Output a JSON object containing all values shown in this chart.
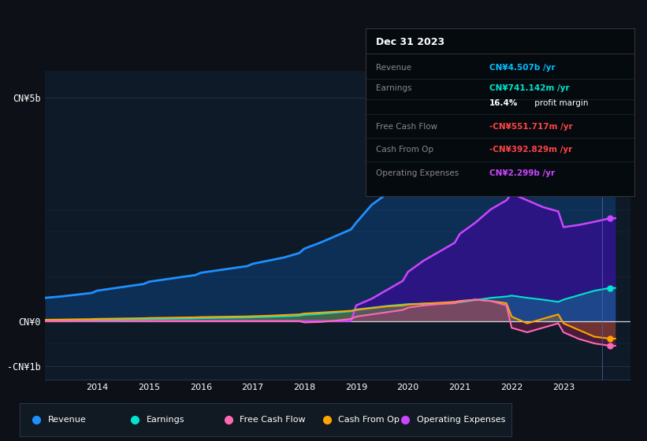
{
  "bg_color": "#0d1117",
  "plot_bg_color": "#0e1a27",
  "grid_color": "#1e2d3d",
  "ylim": [
    -1300000000.0,
    5600000000.0
  ],
  "xlim": [
    2013.0,
    2024.3
  ],
  "yticks": [
    -1000000000.0,
    0,
    5000000000.0
  ],
  "ytick_labels": [
    "-CN¥1b",
    "CN¥0",
    "CN¥5b"
  ],
  "xticks": [
    2014,
    2015,
    2016,
    2017,
    2018,
    2019,
    2020,
    2021,
    2022,
    2023
  ],
  "legend": [
    {
      "label": "Revenue",
      "color": "#1e90ff"
    },
    {
      "label": "Earnings",
      "color": "#00e5cc"
    },
    {
      "label": "Free Cash Flow",
      "color": "#ff69b4"
    },
    {
      "label": "Cash From Op",
      "color": "#ffa500"
    },
    {
      "label": "Operating Expenses",
      "color": "#cc44ff"
    }
  ],
  "info_title": "Dec 31 2023",
  "info_rows": [
    {
      "label": "Revenue",
      "value": "CN¥4.507b /yr",
      "value_color": "#00bfff"
    },
    {
      "label": "Earnings",
      "value": "CN¥741.142m /yr",
      "value_color": "#00e5cc"
    },
    {
      "label": "",
      "value": "16.4% profit margin",
      "value_color": "#ffffff",
      "bold_part": "16.4%"
    },
    {
      "label": "Free Cash Flow",
      "value": "-CN¥551.717m /yr",
      "value_color": "#ff4444"
    },
    {
      "label": "Cash From Op",
      "value": "-CN¥392.829m /yr",
      "value_color": "#ff4444"
    },
    {
      "label": "Operating Expenses",
      "value": "CN¥2.299b /yr",
      "value_color": "#cc44ff"
    }
  ],
  "series": {
    "years": [
      2013.0,
      2013.3,
      2013.6,
      2013.9,
      2014.0,
      2014.3,
      2014.6,
      2014.9,
      2015.0,
      2015.3,
      2015.6,
      2015.9,
      2016.0,
      2016.3,
      2016.6,
      2016.9,
      2017.0,
      2017.3,
      2017.6,
      2017.9,
      2018.0,
      2018.3,
      2018.6,
      2018.9,
      2019.0,
      2019.3,
      2019.6,
      2019.9,
      2020.0,
      2020.3,
      2020.6,
      2020.9,
      2021.0,
      2021.3,
      2021.6,
      2021.9,
      2022.0,
      2022.3,
      2022.6,
      2022.9,
      2023.0,
      2023.3,
      2023.6,
      2023.9,
      2024.0
    ],
    "revenue": [
      520000000.0,
      550000000.0,
      590000000.0,
      630000000.0,
      680000000.0,
      730000000.0,
      780000000.0,
      830000000.0,
      880000000.0,
      930000000.0,
      980000000.0,
      1030000000.0,
      1080000000.0,
      1130000000.0,
      1180000000.0,
      1230000000.0,
      1280000000.0,
      1350000000.0,
      1420000000.0,
      1520000000.0,
      1620000000.0,
      1750000000.0,
      1900000000.0,
      2050000000.0,
      2200000000.0,
      2600000000.0,
      2850000000.0,
      2900000000.0,
      2820000000.0,
      2880000000.0,
      2950000000.0,
      3050000000.0,
      3250000000.0,
      3600000000.0,
      3850000000.0,
      3900000000.0,
      4000000000.0,
      3900000000.0,
      3950000000.0,
      4050000000.0,
      4250000000.0,
      4450000000.0,
      4520000000.0,
      4507000000.0,
      4507000000.0
    ],
    "earnings": [
      15000000.0,
      18000000.0,
      20000000.0,
      22000000.0,
      25000000.0,
      30000000.0,
      35000000.0,
      40000000.0,
      45000000.0,
      50000000.0,
      55000000.0,
      60000000.0,
      65000000.0,
      70000000.0,
      75000000.0,
      80000000.0,
      85000000.0,
      95000000.0,
      105000000.0,
      120000000.0,
      140000000.0,
      160000000.0,
      190000000.0,
      220000000.0,
      260000000.0,
      300000000.0,
      340000000.0,
      370000000.0,
      380000000.0,
      390000000.0,
      400000000.0,
      410000000.0,
      420000000.0,
      470000000.0,
      520000000.0,
      550000000.0,
      570000000.0,
      520000000.0,
      480000000.0,
      430000000.0,
      480000000.0,
      580000000.0,
      680000000.0,
      741000000.0,
      741000000.0
    ],
    "free_cash_flow": [
      0,
      0,
      0,
      0,
      0,
      0,
      0,
      0,
      0,
      0,
      0,
      0,
      0,
      0,
      0,
      0,
      0,
      0,
      0,
      0,
      -30000000.0,
      -20000000.0,
      10000000.0,
      50000000.0,
      100000000.0,
      150000000.0,
      200000000.0,
      250000000.0,
      300000000.0,
      350000000.0,
      380000000.0,
      400000000.0,
      430000000.0,
      480000000.0,
      450000000.0,
      350000000.0,
      -150000000.0,
      -250000000.0,
      -150000000.0,
      -50000000.0,
      -250000000.0,
      -400000000.0,
      -500000000.0,
      -552000000.0,
      -552000000.0
    ],
    "cash_from_op": [
      30000000.0,
      35000000.0,
      40000000.0,
      45000000.0,
      50000000.0,
      55000000.0,
      60000000.0,
      65000000.0,
      70000000.0,
      75000000.0,
      80000000.0,
      85000000.0,
      90000000.0,
      95000000.0,
      100000000.0,
      105000000.0,
      110000000.0,
      120000000.0,
      135000000.0,
      150000000.0,
      170000000.0,
      190000000.0,
      210000000.0,
      230000000.0,
      250000000.0,
      290000000.0,
      330000000.0,
      350000000.0,
      370000000.0,
      390000000.0,
      410000000.0,
      430000000.0,
      450000000.0,
      480000000.0,
      450000000.0,
      400000000.0,
      100000000.0,
      -50000000.0,
      50000000.0,
      150000000.0,
      -50000000.0,
      -200000000.0,
      -350000000.0,
      -393000000.0,
      -393000000.0
    ],
    "operating_expenses": [
      0,
      0,
      0,
      0,
      0,
      0,
      0,
      0,
      0,
      0,
      0,
      0,
      0,
      0,
      0,
      0,
      0,
      0,
      0,
      0,
      0,
      0,
      0,
      0,
      350000000.0,
      500000000.0,
      700000000.0,
      900000000.0,
      1100000000.0,
      1350000000.0,
      1550000000.0,
      1750000000.0,
      1950000000.0,
      2200000000.0,
      2500000000.0,
      2700000000.0,
      2850000000.0,
      2700000000.0,
      2550000000.0,
      2450000000.0,
      2100000000.0,
      2150000000.0,
      2220000000.0,
      2299000000.0,
      2299000000.0
    ]
  }
}
